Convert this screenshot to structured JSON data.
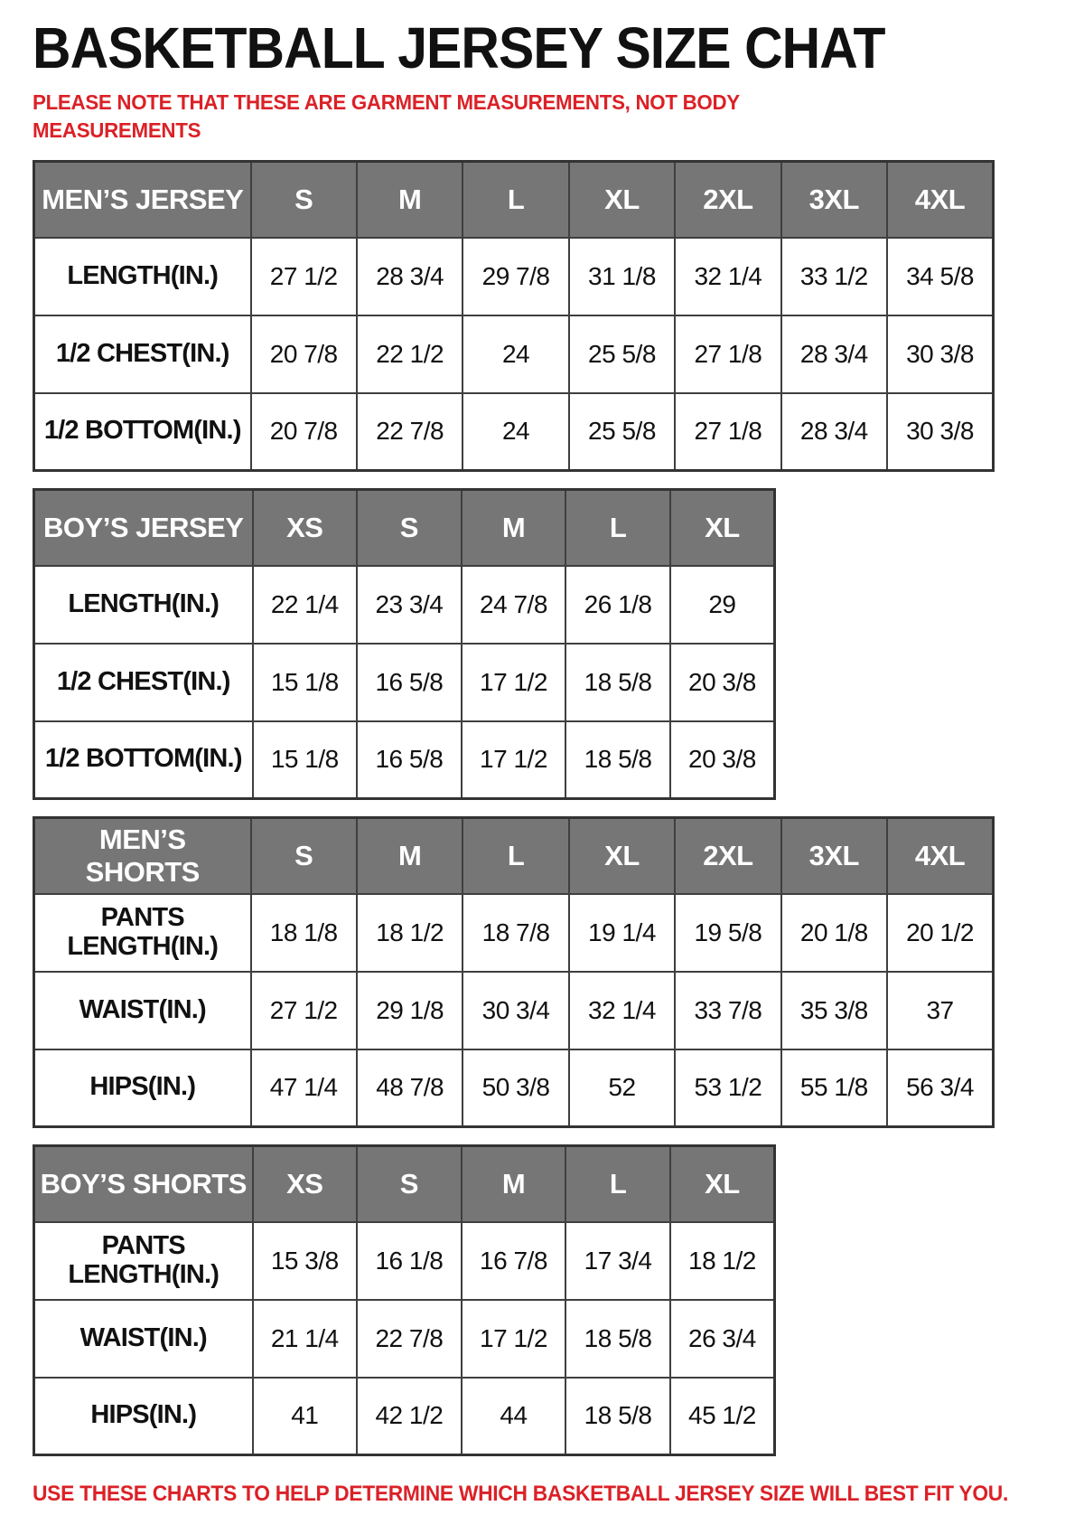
{
  "page": {
    "title": "BASKETBALL JERSEY SIZE CHAT",
    "top_note": "PLEASE NOTE THAT THESE ARE GARMENT MEASUREMENTS, NOT BODY MEASUREMENTS",
    "bottom_note": "USE THESE CHARTS TO HELP DETERMINE WHICH BASKETBALL JERSEY SIZE WILL BEST FIT YOU."
  },
  "colors": {
    "accent_red": "#db2127",
    "header_gray": "#767676",
    "header_text": "#ffffff",
    "grid_line": "#3f3f3f",
    "background": "#ffffff"
  },
  "tables": [
    {
      "id": "mens-jersey",
      "header": [
        "MEN’S JERSEY",
        "S",
        "M",
        "L",
        "XL",
        "2XL",
        "3XL",
        "4XL"
      ],
      "rows": [
        {
          "label": "LENGTH(IN.)",
          "values": [
            "27 1/2",
            "28 3/4",
            "29 7/8",
            "31 1/8",
            "32 1/4",
            "33 1/2",
            "34 5/8"
          ]
        },
        {
          "label": "1/2 CHEST(IN.)",
          "values": [
            "20 7/8",
            "22 1/2",
            "24",
            "25 5/8",
            "27 1/8",
            "28 3/4",
            "30 3/8"
          ]
        },
        {
          "label": "1/2 BOTTOM(IN.)",
          "values": [
            "20 7/8",
            "22 7/8",
            "24",
            "25 5/8",
            "27 1/8",
            "28 3/4",
            "30 3/8"
          ]
        }
      ]
    },
    {
      "id": "boys-jersey",
      "header": [
        "BOY’S JERSEY",
        "XS",
        "S",
        "M",
        "L",
        "XL"
      ],
      "rows": [
        {
          "label": "LENGTH(IN.)",
          "values": [
            "22 1/4",
            "23 3/4",
            "24 7/8",
            "26 1/8",
            "29"
          ]
        },
        {
          "label": "1/2 CHEST(IN.)",
          "values": [
            "15 1/8",
            "16 5/8",
            "17 1/2",
            "18 5/8",
            "20 3/8"
          ]
        },
        {
          "label": "1/2 BOTTOM(IN.)",
          "values": [
            "15 1/8",
            "16 5/8",
            "17 1/2",
            "18 5/8",
            "20 3/8"
          ]
        }
      ]
    },
    {
      "id": "mens-shorts",
      "header": [
        "MEN’S SHORTS",
        "S",
        "M",
        "L",
        "XL",
        "2XL",
        "3XL",
        "4XL"
      ],
      "rows": [
        {
          "label": "PANTS LENGTH(IN.)",
          "values": [
            "18 1/8",
            "18 1/2",
            "18 7/8",
            "19 1/4",
            "19 5/8",
            "20 1/8",
            "20 1/2"
          ]
        },
        {
          "label": "WAIST(IN.)",
          "values": [
            "27 1/2",
            "29 1/8",
            "30 3/4",
            "32 1/4",
            "33 7/8",
            "35 3/8",
            "37"
          ]
        },
        {
          "label": "HIPS(IN.)",
          "values": [
            "47 1/4",
            "48 7/8",
            "50 3/8",
            "52",
            "53 1/2",
            "55 1/8",
            "56 3/4"
          ]
        }
      ]
    },
    {
      "id": "boys-shorts",
      "header": [
        "BOY’S SHORTS",
        "XS",
        "S",
        "M",
        "L",
        "XL"
      ],
      "rows": [
        {
          "label": "PANTS LENGTH(IN.)",
          "values": [
            "15 3/8",
            "16 1/8",
            "16 7/8",
            "17 3/4",
            "18 1/2"
          ]
        },
        {
          "label": "WAIST(IN.)",
          "values": [
            "21 1/4",
            "22 7/8",
            "17 1/2",
            "18 5/8",
            "26 3/4"
          ]
        },
        {
          "label": "HIPS(IN.)",
          "values": [
            "41",
            "42 1/2",
            "44",
            "18 5/8",
            "45 1/2"
          ]
        }
      ]
    }
  ]
}
